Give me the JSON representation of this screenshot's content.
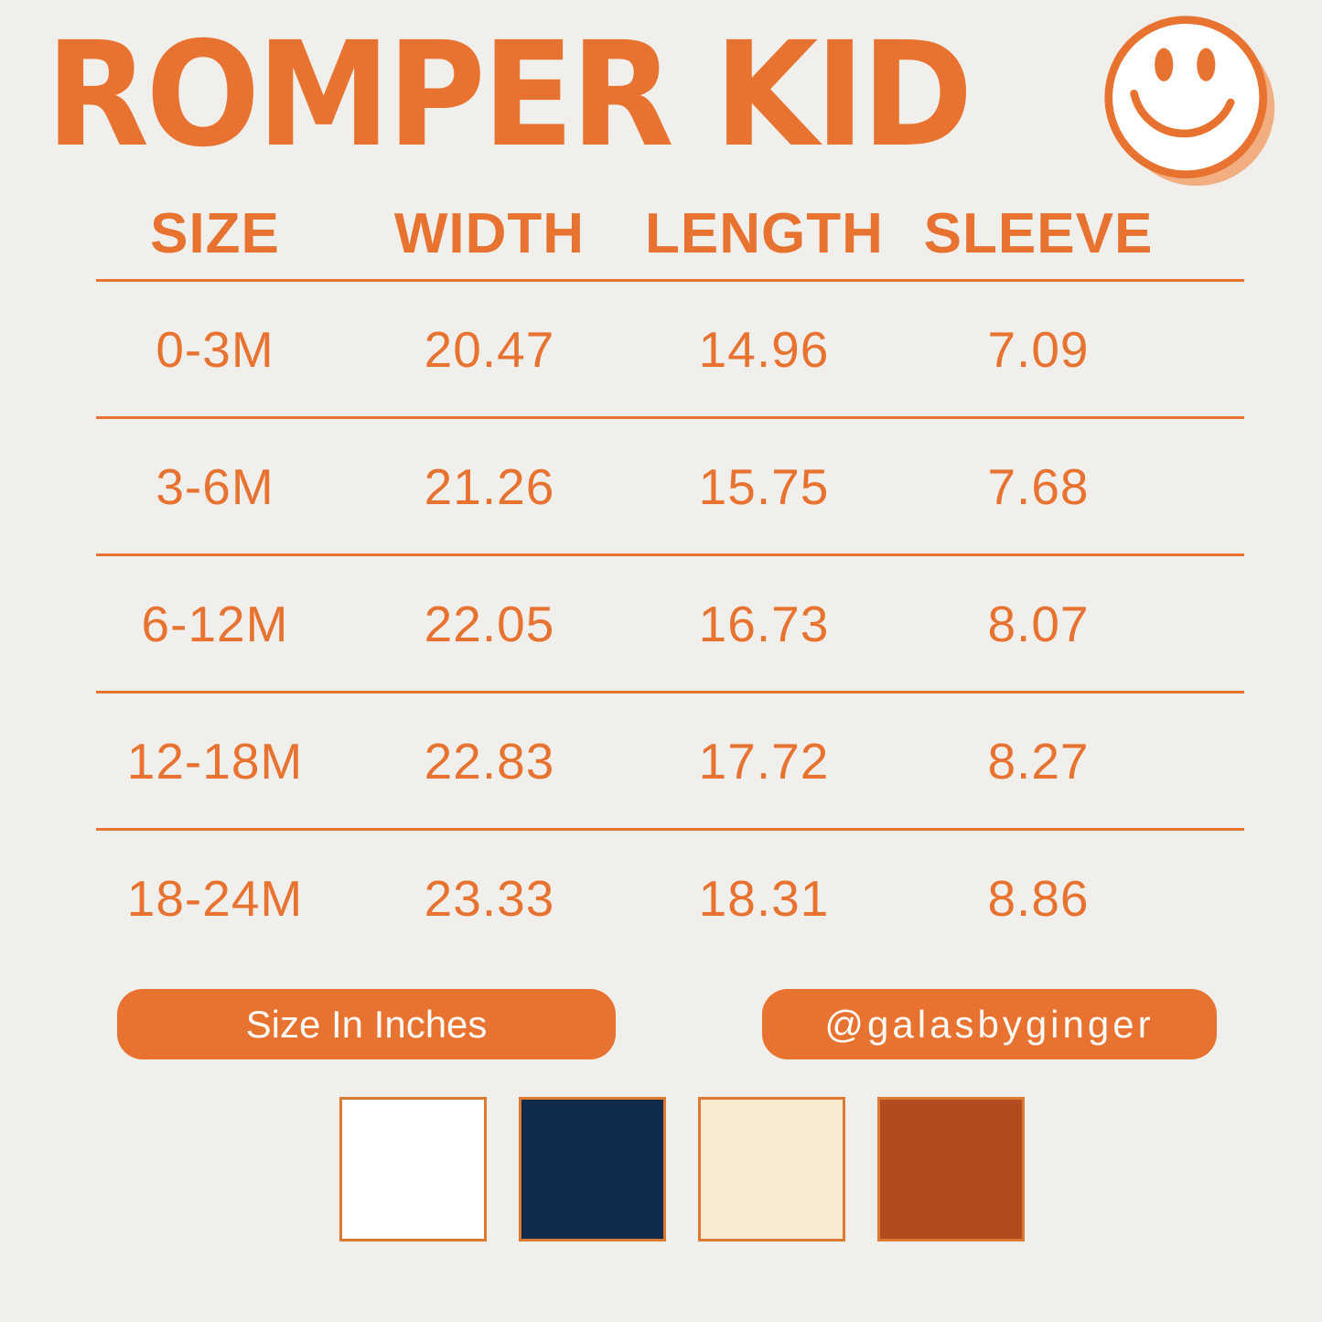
{
  "page": {
    "background_color": "#f0efec",
    "accent_color": "#e8722f"
  },
  "header": {
    "title": "ROMPER KID",
    "smiley": {
      "icon": "smiley-face-icon",
      "face_color": "#ffffff",
      "outline_color": "#e8722f",
      "shadow_color": "#f2ae80"
    }
  },
  "table": {
    "columns": [
      "SIZE",
      "WIDTH",
      "LENGTH",
      "SLEEVE"
    ],
    "rows": [
      [
        "0-3M",
        "20.47",
        "14.96",
        "7.09"
      ],
      [
        "3-6M",
        "21.26",
        "15.75",
        "7.68"
      ],
      [
        "6-12M",
        "22.05",
        "16.73",
        "8.07"
      ],
      [
        "12-18M",
        "22.83",
        "17.72",
        "8.27"
      ],
      [
        "18-24M",
        "23.33",
        "18.31",
        "8.86"
      ]
    ]
  },
  "chart_data": {
    "type": "table",
    "title": "ROMPER KID",
    "units": "inches",
    "columns": [
      "SIZE",
      "WIDTH",
      "LENGTH",
      "SLEEVE"
    ],
    "categories": [
      "0-3M",
      "3-6M",
      "6-12M",
      "12-18M",
      "18-24M"
    ],
    "series": [
      {
        "name": "WIDTH",
        "values": [
          20.47,
          21.26,
          22.05,
          22.83,
          23.33
        ]
      },
      {
        "name": "LENGTH",
        "values": [
          14.96,
          15.75,
          16.73,
          17.72,
          18.31
        ]
      },
      {
        "name": "SLEEVE",
        "values": [
          7.09,
          7.68,
          8.07,
          8.27,
          8.86
        ]
      }
    ]
  },
  "footer": {
    "units_badge": "Size In Inches",
    "handle_badge": "@galasbyginger",
    "swatches": [
      {
        "name": "white",
        "hex": "#ffffff"
      },
      {
        "name": "navy",
        "hex": "#0e2b4c"
      },
      {
        "name": "cream",
        "hex": "#f8ead1"
      },
      {
        "name": "rust",
        "hex": "#b44b1e"
      }
    ]
  }
}
